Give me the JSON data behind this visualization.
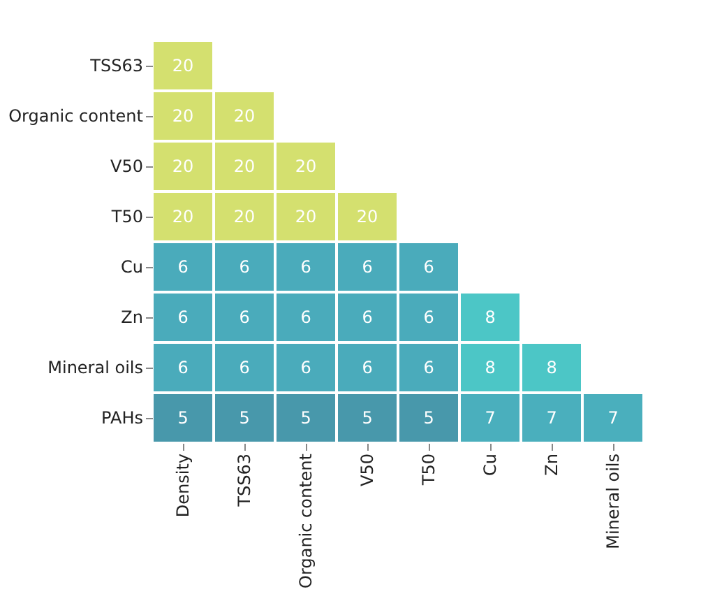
{
  "chart_data": {
    "type": "heatmap",
    "categories": [
      "Density",
      "TSS63",
      "Organic content",
      "V50",
      "T50",
      "Cu",
      "Zn",
      "Mineral oils"
    ],
    "y_categories": [
      "TSS63",
      "Organic content",
      "V50",
      "T50",
      "Cu",
      "Zn",
      "Mineral oils",
      "PAHs"
    ],
    "cells": [
      [
        20,
        null,
        null,
        null,
        null,
        null,
        null,
        null
      ],
      [
        20,
        20,
        null,
        null,
        null,
        null,
        null,
        null
      ],
      [
        20,
        20,
        20,
        null,
        null,
        null,
        null,
        null
      ],
      [
        20,
        20,
        20,
        20,
        null,
        null,
        null,
        null
      ],
      [
        6,
        6,
        6,
        6,
        6,
        null,
        null,
        null
      ],
      [
        6,
        6,
        6,
        6,
        6,
        8,
        null,
        null
      ],
      [
        6,
        6,
        6,
        6,
        6,
        8,
        8,
        null
      ],
      [
        5,
        5,
        5,
        5,
        5,
        7,
        7,
        7
      ]
    ],
    "colors": [
      [
        "#d4e06f",
        null,
        null,
        null,
        null,
        null,
        null,
        null
      ],
      [
        "#d4e06f",
        "#d4e06f",
        null,
        null,
        null,
        null,
        null,
        null
      ],
      [
        "#d4e06f",
        "#d4e06f",
        "#d4e06f",
        null,
        null,
        null,
        null,
        null
      ],
      [
        "#d4e06f",
        "#d4e06f",
        "#d4e06f",
        "#d4e06f",
        null,
        null,
        null,
        null
      ],
      [
        "#4aabbb",
        "#4aabbb",
        "#4aabbb",
        "#4aabbb",
        "#4aabbb",
        null,
        null,
        null
      ],
      [
        "#4aabbb",
        "#4aabbb",
        "#4aabbb",
        "#4aabbb",
        "#4aabbb",
        "#4cc6c6",
        null,
        null
      ],
      [
        "#4aabbb",
        "#4aabbb",
        "#4aabbb",
        "#4aabbb",
        "#4aabbb",
        "#4cc6c6",
        "#4cc6c6",
        null
      ],
      [
        "#4898ab",
        "#4898ab",
        "#4898ab",
        "#4898ab",
        "#4898ab",
        "#4aafbd",
        "#4aafbd",
        "#4aafbd"
      ]
    ],
    "data_labels": true
  }
}
